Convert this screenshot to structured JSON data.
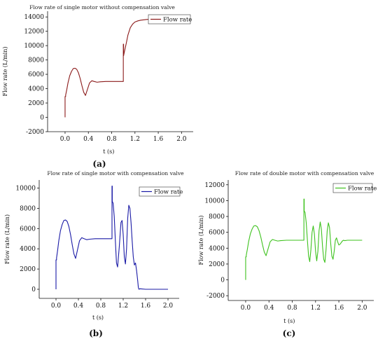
{
  "chart_data": [
    {
      "type": "line",
      "panel_label": "(a)",
      "title": "Flow rate of single motor without compensation valve",
      "xlabel": "t (s)",
      "ylabel": "Flow rate (L/min)",
      "xlim": [
        -0.3,
        2.2
      ],
      "ylim": [
        -2000,
        14800
      ],
      "xticks": [
        0.0,
        0.4,
        0.8,
        1.2,
        1.6,
        2.0
      ],
      "xtick_labels": [
        "0.0",
        "0.4",
        "0.8",
        "1.2",
        "1.6",
        "2.0"
      ],
      "yticks": [
        -2000,
        0,
        2000,
        4000,
        6000,
        8000,
        10000,
        12000,
        14000
      ],
      "ytick_labels": [
        "-2000",
        "0",
        "2000",
        "4000",
        "6000",
        "8000",
        "10000",
        "12000",
        "14000"
      ],
      "legend_position": "top-right",
      "series": [
        {
          "name": "Flow rate",
          "color": "#8b1a1a",
          "x": [
            0.0,
            0.0,
            0.01,
            0.01,
            0.03,
            0.05,
            0.08,
            0.11,
            0.14,
            0.17,
            0.2,
            0.23,
            0.26,
            0.29,
            0.32,
            0.35,
            0.38,
            0.42,
            0.46,
            0.5,
            0.55,
            0.6,
            0.7,
            0.8,
            0.9,
            1.0,
            1.0,
            1.005,
            1.005,
            1.02,
            1.05,
            1.08,
            1.12,
            1.16,
            1.2,
            1.25,
            1.3,
            1.4,
            1.5,
            1.6,
            1.7,
            1.8,
            1.9,
            2.0
          ],
          "y": [
            0,
            2900,
            2900,
            3100,
            3900,
            4800,
            5800,
            6400,
            6800,
            6850,
            6700,
            6200,
            5400,
            4400,
            3500,
            3050,
            3800,
            4800,
            5100,
            5000,
            4900,
            4950,
            5000,
            5000,
            5000,
            5000,
            10200,
            10200,
            8600,
            9200,
            10300,
            11500,
            12500,
            13000,
            13300,
            13450,
            13550,
            13650,
            13700,
            13730,
            13740,
            13750,
            13730,
            13700
          ]
        }
      ]
    },
    {
      "type": "line",
      "panel_label": "(b)",
      "title": "Flow rate of single motor with compensation valve",
      "xlabel": "t (s)",
      "ylabel": "Flow rate (L/min)",
      "xlim": [
        -0.3,
        2.2
      ],
      "ylim": [
        -900,
        10800
      ],
      "xticks": [
        0.0,
        0.4,
        0.8,
        1.2,
        1.6,
        2.0
      ],
      "xtick_labels": [
        "0.0",
        "0.4",
        "0.8",
        "1.2",
        "1.6",
        "2.0"
      ],
      "yticks": [
        0,
        2000,
        4000,
        6000,
        8000,
        10000
      ],
      "ytick_labels": [
        "0",
        "2000",
        "4000",
        "6000",
        "8000",
        "10000"
      ],
      "legend_position": "top-right",
      "series": [
        {
          "name": "Flow rate",
          "color": "#1a1aa6",
          "x": [
            0.0,
            0.0,
            0.01,
            0.01,
            0.03,
            0.05,
            0.08,
            0.11,
            0.14,
            0.17,
            0.2,
            0.23,
            0.26,
            0.29,
            0.32,
            0.35,
            0.38,
            0.42,
            0.46,
            0.5,
            0.55,
            0.6,
            0.7,
            0.8,
            0.9,
            1.0,
            1.0,
            1.005,
            1.005,
            1.02,
            1.04,
            1.06,
            1.08,
            1.1,
            1.13,
            1.16,
            1.18,
            1.2,
            1.22,
            1.24,
            1.26,
            1.28,
            1.3,
            1.32,
            1.34,
            1.36,
            1.38,
            1.4,
            1.42,
            1.44,
            1.46,
            1.47,
            1.48,
            1.5,
            1.6,
            1.8,
            2.0
          ],
          "y": [
            0,
            2900,
            2900,
            3100,
            3900,
            4800,
            5800,
            6400,
            6800,
            6850,
            6700,
            6200,
            5400,
            4400,
            3500,
            3050,
            3800,
            4800,
            5100,
            5000,
            4900,
            4950,
            5000,
            5000,
            5000,
            5000,
            10200,
            10200,
            8700,
            8500,
            7200,
            4800,
            2600,
            2200,
            4200,
            6600,
            6800,
            5400,
            3200,
            2500,
            4000,
            7000,
            8300,
            8000,
            6600,
            4800,
            3200,
            2400,
            2600,
            1800,
            800,
            200,
            0,
            50,
            0,
            0,
            0
          ]
        }
      ]
    },
    {
      "type": "line",
      "panel_label": "(c)",
      "title": "Flow rate of double motor with compensation valve",
      "xlabel": "t (s)",
      "ylabel": "Flow rate (L/min)",
      "xlim": [
        -0.3,
        2.2
      ],
      "ylim": [
        -2600,
        12600
      ],
      "xticks": [
        0.0,
        0.4,
        0.8,
        1.2,
        1.6,
        2.0
      ],
      "xtick_labels": [
        "0.0",
        "0.4",
        "0.8",
        "1.2",
        "1.6",
        "2.0"
      ],
      "yticks": [
        -2000,
        0,
        2000,
        4000,
        6000,
        8000,
        10000,
        12000
      ],
      "ytick_labels": [
        "-2000",
        "0",
        "2000",
        "4000",
        "6000",
        "8000",
        "10000",
        "12000"
      ],
      "legend_position": "top-right",
      "series": [
        {
          "name": "Flow rate",
          "color": "#3ec21e",
          "x": [
            0.0,
            0.0,
            0.01,
            0.01,
            0.03,
            0.05,
            0.08,
            0.11,
            0.14,
            0.17,
            0.2,
            0.23,
            0.26,
            0.29,
            0.32,
            0.35,
            0.38,
            0.42,
            0.46,
            0.5,
            0.55,
            0.6,
            0.7,
            0.8,
            0.9,
            1.0,
            1.0,
            1.005,
            1.005,
            1.02,
            1.04,
            1.06,
            1.08,
            1.1,
            1.12,
            1.14,
            1.16,
            1.18,
            1.2,
            1.22,
            1.24,
            1.26,
            1.28,
            1.3,
            1.32,
            1.34,
            1.36,
            1.38,
            1.4,
            1.42,
            1.44,
            1.46,
            1.48,
            1.5,
            1.52,
            1.54,
            1.56,
            1.58,
            1.6,
            1.62,
            1.64,
            1.66,
            1.68,
            1.7,
            1.75,
            1.8,
            1.9,
            2.0
          ],
          "y": [
            0,
            2900,
            2900,
            3100,
            3900,
            4800,
            5800,
            6400,
            6800,
            6850,
            6700,
            6200,
            5400,
            4400,
            3500,
            3050,
            3800,
            4800,
            5100,
            5000,
            4900,
            4950,
            5000,
            5000,
            5000,
            5000,
            10200,
            10200,
            8700,
            8500,
            7200,
            5000,
            3000,
            2300,
            3800,
            6000,
            6800,
            5800,
            3600,
            2400,
            3600,
            6200,
            7300,
            6400,
            4200,
            2600,
            2200,
            3800,
            6200,
            7200,
            6600,
            4600,
            3000,
            2600,
            3600,
            5000,
            5300,
            4800,
            4400,
            4500,
            4700,
            4900,
            5000,
            4950,
            5000,
            5000,
            5000,
            5000
          ]
        }
      ]
    }
  ]
}
